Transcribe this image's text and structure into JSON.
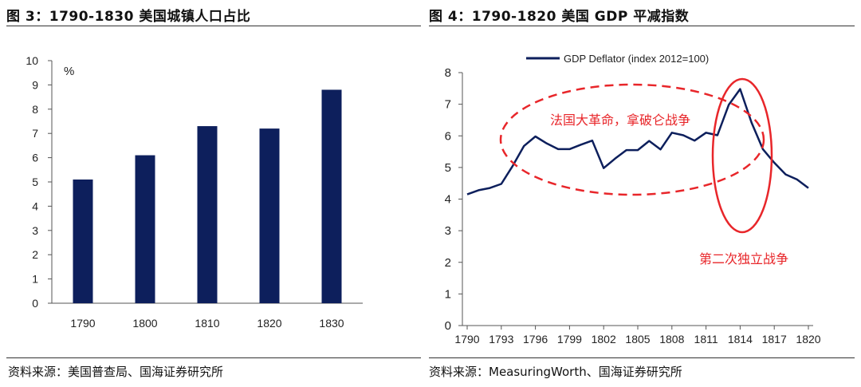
{
  "left_panel": {
    "title": "图 3：1790-1830 美国城镇人口占比",
    "source": "资料来源：美国普查局、国海证券研究所"
  },
  "right_panel": {
    "title": "图 4：1790-1820 美国 GDP 平减指数",
    "source": "资料来源：MeasuringWorth、国海证券研究所",
    "annotations": {
      "french_revolution": "法国大革命，拿破仑战争",
      "war_1812": "第二次独立战争"
    }
  },
  "colors": {
    "series": "#0d1f5c",
    "annotation": "#e8262a"
  },
  "chart_data": [
    {
      "type": "bar",
      "title": "1790-1830 美国城镇人口占比",
      "unit_label": "%",
      "categories": [
        "1790",
        "1800",
        "1810",
        "1820",
        "1830"
      ],
      "values": [
        5.1,
        6.1,
        7.3,
        7.2,
        8.8
      ],
      "ylim": [
        0,
        10
      ],
      "yticks": [
        0,
        1,
        2,
        3,
        4,
        5,
        6,
        7,
        8,
        9,
        10
      ],
      "grid": false
    },
    {
      "type": "line",
      "title": "1790-1820 美国 GDP 平减指数",
      "legend": "GDP Deflator (index 2012=100)",
      "legend_position": "top",
      "x": [
        1790,
        1791,
        1792,
        1793,
        1794,
        1795,
        1796,
        1797,
        1798,
        1799,
        1800,
        1801,
        1802,
        1803,
        1804,
        1805,
        1806,
        1807,
        1808,
        1809,
        1810,
        1811,
        1812,
        1813,
        1814,
        1815,
        1816,
        1817,
        1818,
        1819,
        1820
      ],
      "values": [
        4.15,
        4.28,
        4.35,
        4.48,
        5.05,
        5.68,
        5.98,
        5.76,
        5.58,
        5.58,
        5.72,
        5.85,
        4.98,
        5.28,
        5.55,
        5.55,
        5.84,
        5.57,
        6.1,
        6.02,
        5.85,
        6.1,
        6.02,
        6.98,
        7.48,
        6.42,
        5.58,
        5.15,
        4.78,
        4.62,
        4.35
      ],
      "xticks": [
        1790,
        1793,
        1796,
        1799,
        1802,
        1805,
        1808,
        1811,
        1814,
        1817,
        1820
      ],
      "ylim": [
        0,
        8
      ],
      "yticks": [
        0,
        1,
        2,
        3,
        4,
        5,
        6,
        7,
        8
      ],
      "grid": false
    }
  ]
}
